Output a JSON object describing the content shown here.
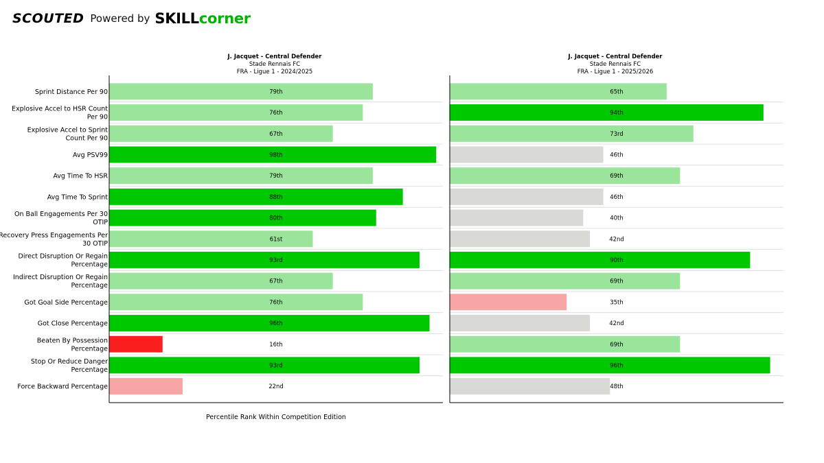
{
  "header": {
    "brand_primary": "SCOUTED",
    "powered_by": "Powered by",
    "partner_part1": "SKILL",
    "partner_part2": "corner"
  },
  "colors": {
    "elite": "#00c800",
    "above_average": "#9be49b",
    "average": "#d9d9d5",
    "below_average": "#f8a5a5",
    "poor": "#fb2020",
    "partner_accent": "#00b400"
  },
  "chart_data": {
    "type": "bar",
    "orientation": "horizontal",
    "xlabel": "Percentile Rank Within Competition Edition",
    "xlim": [
      0,
      100
    ],
    "grid": "horizontal row separators",
    "categories": [
      "Sprint Distance Per 90",
      "Explosive Accel to HSR Count Per 90",
      "Explosive Accel to Sprint Count Per 90",
      "Avg PSV99",
      "Avg Time To HSR",
      "Avg Time To Sprint",
      "On Ball Engagements Per 30 OTIP",
      "Recovery Press Engagements Per 30 OTIP",
      "Direct Disruption Or Regain Percentage",
      "Indirect Disruption Or Regain Percentage",
      "Got Goal Side Percentage",
      "Got Close Percentage",
      "Beaten By Possession Percentage",
      "Stop Or Reduce Danger Percentage",
      "Force Backward Percentage"
    ],
    "category_lines": [
      [
        "Sprint Distance Per 90"
      ],
      [
        "Explosive Accel to HSR Count",
        "Per 90"
      ],
      [
        "Explosive Accel to Sprint",
        "Count Per 90"
      ],
      [
        "Avg PSV99"
      ],
      [
        "Avg Time To HSR"
      ],
      [
        "Avg Time To Sprint"
      ],
      [
        "On Ball Engagements Per 30",
        "OTIP"
      ],
      [
        "Recovery Press Engagements Per",
        "30 OTIP"
      ],
      [
        "Direct Disruption Or Regain",
        "Percentage"
      ],
      [
        "Indirect Disruption Or Regain",
        "Percentage"
      ],
      [
        "Got Goal Side Percentage"
      ],
      [
        "Got Close Percentage"
      ],
      [
        "Beaten By Possession",
        "Percentage"
      ],
      [
        "Stop Or Reduce Danger",
        "Percentage"
      ],
      [
        "Force Backward Percentage"
      ]
    ],
    "panels": [
      {
        "title": "J. Jacquet - Central Defender",
        "club": "Stade Rennais FC",
        "competition": "FRA - Ligue 1 - 2024/2025",
        "values": [
          79,
          76,
          67,
          98,
          79,
          88,
          80,
          61,
          93,
          67,
          76,
          96,
          16,
          93,
          22
        ],
        "labels": [
          "79th",
          "76th",
          "67th",
          "98th",
          "79th",
          "88th",
          "80th",
          "61st",
          "93rd",
          "67th",
          "76th",
          "96th",
          "16th",
          "93rd",
          "22nd"
        ],
        "colors": [
          "above_average",
          "above_average",
          "above_average",
          "elite",
          "above_average",
          "elite",
          "elite",
          "above_average",
          "elite",
          "above_average",
          "above_average",
          "elite",
          "poor",
          "elite",
          "below_average"
        ]
      },
      {
        "title": "J. Jacquet - Central Defender",
        "club": "Stade Rennais FC",
        "competition": "FRA - Ligue 1 - 2025/2026",
        "values": [
          65,
          94,
          73,
          46,
          69,
          46,
          40,
          42,
          90,
          69,
          35,
          42,
          69,
          96,
          48
        ],
        "labels": [
          "65th",
          "94th",
          "73rd",
          "46th",
          "69th",
          "46th",
          "40th",
          "42nd",
          "90th",
          "69th",
          "35th",
          "42nd",
          "69th",
          "96th",
          "48th"
        ],
        "colors": [
          "above_average",
          "elite",
          "above_average",
          "average",
          "above_average",
          "average",
          "average",
          "average",
          "elite",
          "above_average",
          "below_average",
          "average",
          "above_average",
          "elite",
          "average"
        ]
      }
    ]
  }
}
